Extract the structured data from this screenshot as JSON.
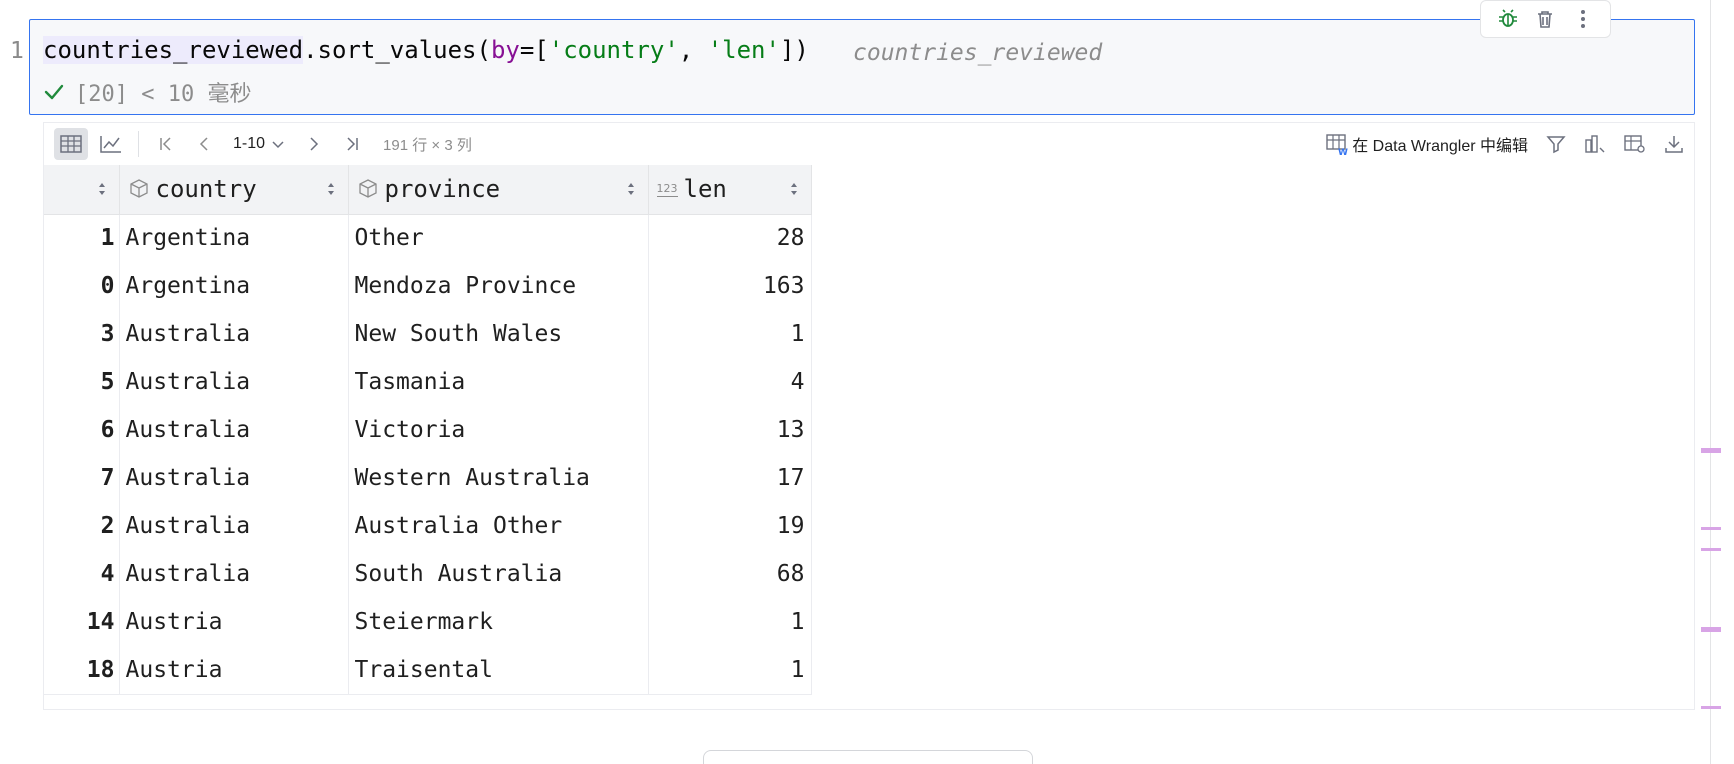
{
  "gutter": {
    "line_number": "1"
  },
  "cell": {
    "code": {
      "var": "countries_reviewed",
      "method": ".sort_values(",
      "kw": "by",
      "eq_open": "=[",
      "str1": "'country'",
      "comma": ", ",
      "str2": "'len'",
      "close": "])"
    },
    "inline_hint": "countries_reviewed",
    "status": "[20] < 10 毫秒"
  },
  "cell_toolbar": {
    "icons": [
      "debug-icon",
      "trash-icon",
      "more-vertical-icon"
    ]
  },
  "output_toolbar": {
    "page_range": "1-10",
    "dimensions": "191 行 × 3 列",
    "data_wrangler_label": "在 Data Wrangler 中编辑"
  },
  "table": {
    "columns": [
      {
        "name": "",
        "type": "index"
      },
      {
        "name": "country",
        "type": "object"
      },
      {
        "name": "province",
        "type": "object"
      },
      {
        "name": "len",
        "type": "123"
      }
    ],
    "rows": [
      {
        "index": "1",
        "country": "Argentina",
        "province": "Other",
        "len": "28"
      },
      {
        "index": "0",
        "country": "Argentina",
        "province": "Mendoza Province",
        "len": "163"
      },
      {
        "index": "3",
        "country": "Australia",
        "province": "New South Wales",
        "len": "1"
      },
      {
        "index": "5",
        "country": "Australia",
        "province": "Tasmania",
        "len": "4"
      },
      {
        "index": "6",
        "country": "Australia",
        "province": "Victoria",
        "len": "13"
      },
      {
        "index": "7",
        "country": "Australia",
        "province": "Western Australia",
        "len": "17"
      },
      {
        "index": "2",
        "country": "Australia",
        "province": "Australia Other",
        "len": "19"
      },
      {
        "index": "4",
        "country": "Australia",
        "province": "South Australia",
        "len": "68"
      },
      {
        "index": "14",
        "country": "Austria",
        "province": "Steiermark",
        "len": "1"
      },
      {
        "index": "18",
        "country": "Austria",
        "province": "Traisental",
        "len": "1"
      }
    ]
  },
  "colors": {
    "accent": "#3574f0",
    "success": "#208a3c",
    "keyword": "#871094",
    "string": "#067d17"
  }
}
